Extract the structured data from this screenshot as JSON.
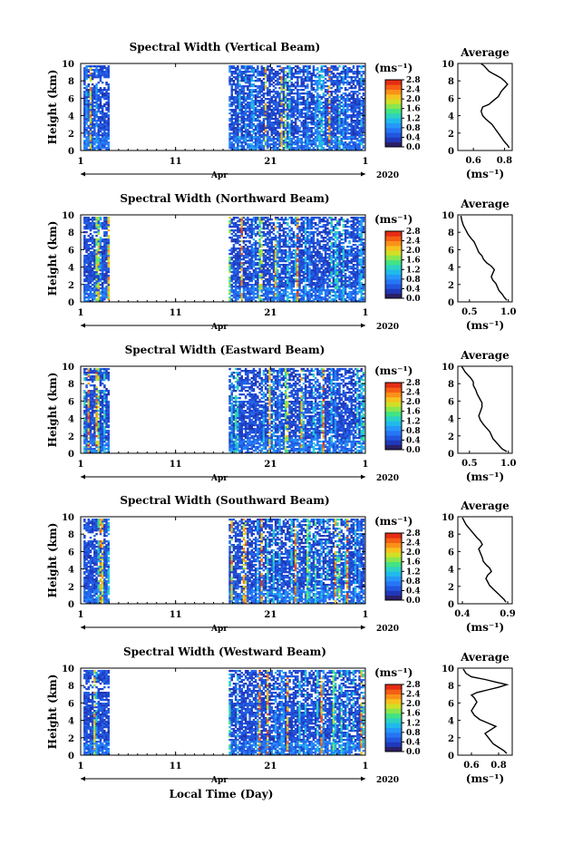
{
  "figure": {
    "xlabel": "Local Time (Day)",
    "month_label": "Apr",
    "year_label": "2020",
    "x_ticks": [
      "1",
      "11",
      "21",
      "1"
    ]
  },
  "chart_data": [
    {
      "type": "heatmap",
      "title": "Spectral Width (Vertical Beam)",
      "ylabel": "Height (km)",
      "ylim": [
        0,
        10
      ],
      "y_ticks": [
        "0",
        "2",
        "4",
        "6",
        "8",
        "10"
      ],
      "xlim_days": [
        1,
        31
      ],
      "colorbar": {
        "unit": "(ms⁻¹)",
        "ticks": [
          "0.0",
          "0.4",
          "0.8",
          "1.2",
          "1.6",
          "2.0",
          "2.4",
          "2.8"
        ],
        "range": [
          0,
          2.8
        ]
      },
      "average": {
        "title": "Average",
        "xlabel": "(ms⁻¹)",
        "x_ticks": [
          "0.6",
          "0.8"
        ],
        "xlim": [
          0.5,
          0.85
        ],
        "profile_x": [
          0.83,
          0.82,
          0.8,
          0.78,
          0.76,
          0.74,
          0.72,
          0.7,
          0.68,
          0.66,
          0.65,
          0.66,
          0.7,
          0.72,
          0.74,
          0.76,
          0.77,
          0.78,
          0.8,
          0.82,
          0.8,
          0.78,
          0.75,
          0.72,
          0.7,
          0.69,
          0.68,
          0.67,
          0.66,
          0.65
        ],
        "profile_y": [
          0.3,
          0.6,
          1.0,
          1.5,
          2.0,
          2.5,
          3.0,
          3.3,
          3.6,
          4.0,
          4.5,
          5.0,
          5.3,
          5.6,
          5.9,
          6.2,
          6.5,
          6.8,
          7.2,
          7.6,
          8.0,
          8.3,
          8.6,
          8.9,
          9.1,
          9.3,
          9.5,
          9.7,
          9.85,
          9.95
        ]
      }
    },
    {
      "type": "heatmap",
      "title": "Spectral Width (Northward Beam)",
      "ylabel": "Height (km)",
      "ylim": [
        0,
        10
      ],
      "y_ticks": [
        "0",
        "2",
        "4",
        "6",
        "8",
        "10"
      ],
      "xlim_days": [
        1,
        31
      ],
      "colorbar": {
        "unit": "(ms⁻¹)",
        "ticks": [
          "0.0",
          "0.4",
          "0.8",
          "1.2",
          "1.6",
          "2.0",
          "2.4",
          "2.8"
        ],
        "range": [
          0,
          2.8
        ]
      },
      "average": {
        "title": "Average",
        "xlabel": "(ms⁻¹)",
        "x_ticks": [
          "0.5",
          "1.0"
        ],
        "xlim": [
          0.35,
          1.05
        ],
        "profile_x": [
          0.98,
          0.95,
          0.92,
          0.88,
          0.86,
          0.84,
          0.8,
          0.78,
          0.8,
          0.82,
          0.78,
          0.72,
          0.68,
          0.66,
          0.62,
          0.6,
          0.58,
          0.56,
          0.52,
          0.48,
          0.45,
          0.42,
          0.4,
          0.39
        ],
        "profile_y": [
          0.2,
          0.5,
          0.9,
          1.3,
          1.7,
          2.1,
          2.5,
          2.9,
          3.3,
          3.7,
          4.1,
          4.5,
          4.9,
          5.3,
          5.7,
          6.1,
          6.5,
          6.9,
          7.3,
          7.8,
          8.3,
          8.8,
          9.4,
          9.9
        ]
      }
    },
    {
      "type": "heatmap",
      "title": "Spectral Width (Eastward Beam)",
      "ylabel": "Height (km)",
      "ylim": [
        0,
        10
      ],
      "y_ticks": [
        "0",
        "2",
        "4",
        "6",
        "8",
        "10"
      ],
      "xlim_days": [
        1,
        31
      ],
      "colorbar": {
        "unit": "(ms⁻¹)",
        "ticks": [
          "0.0",
          "0.4",
          "0.8",
          "1.2",
          "1.6",
          "2.0",
          "2.4",
          "2.8"
        ],
        "range": [
          0,
          2.8
        ]
      },
      "average": {
        "title": "Average",
        "xlabel": "(ms⁻¹)",
        "x_ticks": [
          "0.5",
          "1.0"
        ],
        "xlim": [
          0.35,
          1.05
        ],
        "profile_x": [
          0.98,
          0.92,
          0.88,
          0.84,
          0.8,
          0.78,
          0.76,
          0.72,
          0.68,
          0.64,
          0.62,
          0.64,
          0.66,
          0.66,
          0.63,
          0.6,
          0.58,
          0.55,
          0.55,
          0.52,
          0.48,
          0.44,
          0.42,
          0.4
        ],
        "profile_y": [
          0.2,
          0.5,
          0.9,
          1.3,
          1.7,
          2.1,
          2.5,
          2.9,
          3.3,
          3.8,
          4.3,
          4.8,
          5.3,
          5.8,
          6.3,
          6.8,
          7.3,
          7.8,
          8.2,
          8.6,
          9.0,
          9.4,
          9.7,
          9.95
        ]
      }
    },
    {
      "type": "heatmap",
      "title": "Spectral Width (Southward Beam)",
      "ylabel": "Height (km)",
      "ylim": [
        0,
        10
      ],
      "y_ticks": [
        "0",
        "2",
        "4",
        "6",
        "8",
        "10"
      ],
      "xlim_days": [
        1,
        31
      ],
      "colorbar": {
        "unit": "(ms⁻¹)",
        "ticks": [
          "0.0",
          "0.4",
          "0.8",
          "1.2",
          "1.6",
          "2.0",
          "2.4",
          "2.8"
        ],
        "range": [
          0,
          2.8
        ]
      },
      "average": {
        "title": "Average",
        "xlabel": "(ms⁻¹)",
        "x_ticks": [
          "0.4",
          "0.9"
        ],
        "xlim": [
          0.35,
          0.95
        ],
        "profile_x": [
          0.88,
          0.86,
          0.82,
          0.78,
          0.74,
          0.7,
          0.68,
          0.66,
          0.68,
          0.72,
          0.7,
          0.66,
          0.63,
          0.62,
          0.6,
          0.58,
          0.62,
          0.6,
          0.56,
          0.52,
          0.48,
          0.44,
          0.42,
          0.4
        ],
        "profile_y": [
          0.2,
          0.5,
          0.9,
          1.3,
          1.7,
          2.1,
          2.5,
          2.9,
          3.3,
          3.7,
          4.1,
          4.5,
          4.9,
          5.3,
          5.8,
          6.3,
          6.8,
          7.2,
          7.6,
          8.1,
          8.6,
          9.1,
          9.5,
          9.9
        ]
      }
    },
    {
      "type": "heatmap",
      "title": "Spectral Width (Westward Beam)",
      "ylabel": "Height (km)",
      "ylim": [
        0,
        10
      ],
      "y_ticks": [
        "0",
        "2",
        "4",
        "6",
        "8",
        "10"
      ],
      "xlim_days": [
        1,
        31
      ],
      "colorbar": {
        "unit": "(ms⁻¹)",
        "ticks": [
          "0.0",
          "0.4",
          "0.8",
          "1.2",
          "1.6",
          "2.0",
          "2.4",
          "2.8"
        ],
        "range": [
          0,
          2.8
        ]
      },
      "average": {
        "title": "Average",
        "xlabel": "(ms⁻¹)",
        "x_ticks": [
          "0.6",
          "0.8"
        ],
        "xlim": [
          0.5,
          0.9
        ],
        "profile_x": [
          0.86,
          0.84,
          0.8,
          0.76,
          0.74,
          0.72,
          0.7,
          0.74,
          0.78,
          0.72,
          0.66,
          0.62,
          0.6,
          0.62,
          0.64,
          0.62,
          0.6,
          0.64,
          0.72,
          0.8,
          0.86,
          0.78,
          0.7,
          0.6,
          0.56,
          0.54
        ],
        "profile_y": [
          0.2,
          0.5,
          0.9,
          1.3,
          1.7,
          2.1,
          2.5,
          2.9,
          3.3,
          3.7,
          4.1,
          4.6,
          5.1,
          5.6,
          6.1,
          6.6,
          6.9,
          7.2,
          7.5,
          7.8,
          8.1,
          8.4,
          8.7,
          9.0,
          9.4,
          9.9
        ]
      }
    }
  ]
}
